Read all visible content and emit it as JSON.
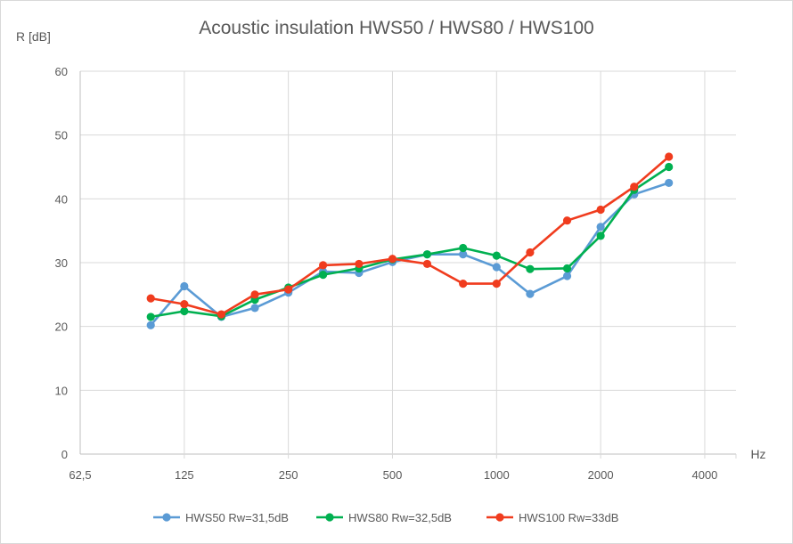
{
  "chart_data": {
    "type": "line",
    "title": "Acoustic insulation HWS50 / HWS80 / HWS100",
    "ylabel": "R [dB]",
    "xlabel": "Hz",
    "ylim": [
      0,
      60
    ],
    "y_ticks": [
      "0",
      "10",
      "20",
      "30",
      "40",
      "50",
      "60"
    ],
    "x_scale": "log2",
    "x_ticks": [
      "62,5",
      "125",
      "250",
      "500",
      "1000",
      "2000",
      "4000"
    ],
    "x": [
      100,
      125,
      160,
      200,
      250,
      315,
      400,
      500,
      630,
      800,
      1000,
      1250,
      1600,
      2000,
      2500,
      3150
    ],
    "grid": true,
    "legend_position": "bottom",
    "series": [
      {
        "name": "HWS50 Rw=31,5dB",
        "color": "#5B9BD5",
        "values": [
          20.2,
          26.3,
          21.5,
          22.9,
          25.3,
          28.6,
          28.4,
          30.1,
          31.3,
          31.3,
          29.3,
          25.1,
          27.9,
          35.6,
          40.7,
          42.5
        ]
      },
      {
        "name": "HWS80 Rw=32,5dB",
        "color": "#00B050",
        "values": [
          21.5,
          22.4,
          21.6,
          24.2,
          26.1,
          28.1,
          29.1,
          30.5,
          31.3,
          32.3,
          31.1,
          29.0,
          29.1,
          34.2,
          41.4,
          45.0
        ]
      },
      {
        "name": "HWS100 Rw=33dB",
        "color": "#F03C1E",
        "values": [
          24.4,
          23.5,
          21.9,
          25.0,
          25.8,
          29.6,
          29.8,
          30.6,
          29.8,
          26.7,
          26.7,
          31.6,
          36.6,
          38.3,
          41.9,
          46.6
        ]
      }
    ]
  }
}
